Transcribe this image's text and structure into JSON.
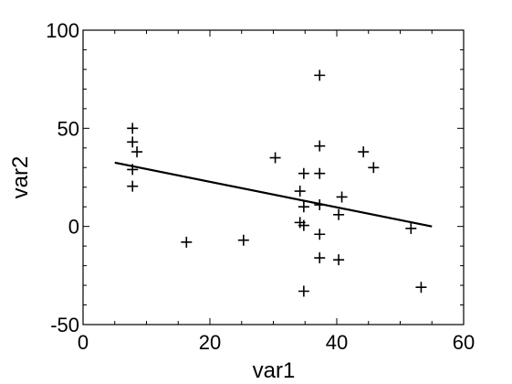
{
  "chart_data": {
    "type": "scatter",
    "xlabel": "var1",
    "ylabel": "var2",
    "xlim": [
      0,
      60
    ],
    "ylim": [
      -50,
      100
    ],
    "x_ticks": [
      0,
      20,
      40,
      60
    ],
    "y_ticks": [
      -50,
      0,
      50,
      100
    ],
    "grid": false,
    "marker": "plus",
    "color": "#000000",
    "points": [
      {
        "x": 7.8,
        "y": 50
      },
      {
        "x": 7.8,
        "y": 43
      },
      {
        "x": 8.5,
        "y": 38
      },
      {
        "x": 7.8,
        "y": 29
      },
      {
        "x": 7.8,
        "y": 20.5
      },
      {
        "x": 16.3,
        "y": -8
      },
      {
        "x": 25.3,
        "y": -7
      },
      {
        "x": 30.3,
        "y": 35
      },
      {
        "x": 34.2,
        "y": 18
      },
      {
        "x": 34.8,
        "y": 27
      },
      {
        "x": 34.8,
        "y": 10
      },
      {
        "x": 34.2,
        "y": 2
      },
      {
        "x": 34.8,
        "y": 0.5
      },
      {
        "x": 34.8,
        "y": -33
      },
      {
        "x": 37.3,
        "y": 77
      },
      {
        "x": 37.3,
        "y": 41
      },
      {
        "x": 37.3,
        "y": 27
      },
      {
        "x": 37.3,
        "y": 11
      },
      {
        "x": 37.3,
        "y": -4
      },
      {
        "x": 37.3,
        "y": -16
      },
      {
        "x": 40.3,
        "y": 6
      },
      {
        "x": 40.8,
        "y": 15
      },
      {
        "x": 40.3,
        "y": -17
      },
      {
        "x": 44.2,
        "y": 38
      },
      {
        "x": 45.8,
        "y": 30
      },
      {
        "x": 51.7,
        "y": -1
      },
      {
        "x": 53.3,
        "y": -31
      }
    ],
    "fit_line": {
      "x": [
        5,
        55
      ],
      "y": [
        32.5,
        0
      ]
    }
  }
}
